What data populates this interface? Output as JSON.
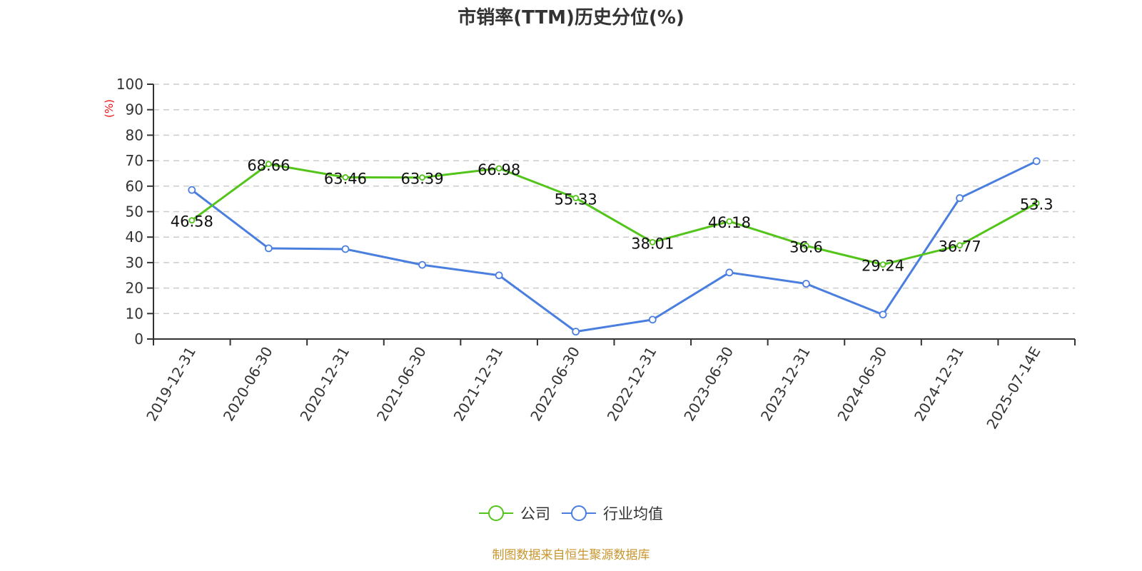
{
  "chart_data": {
    "type": "line",
    "title": "市销率(TTM)历史分位(%)",
    "xlabel": "",
    "ylabel": "(%)",
    "ylim": [
      0,
      100
    ],
    "yticks": [
      0,
      10,
      20,
      30,
      40,
      50,
      60,
      70,
      80,
      90,
      100
    ],
    "grid": true,
    "legend_position": "bottom",
    "categories": [
      "2019-12-31",
      "2020-06-30",
      "2020-12-31",
      "2021-06-30",
      "2021-12-31",
      "2022-06-30",
      "2022-12-31",
      "2023-06-30",
      "2023-12-31",
      "2024-06-30",
      "2024-12-31",
      "2025-07-14E"
    ],
    "series": [
      {
        "name": "公司",
        "color": "#52c41a",
        "labeled": true,
        "values": [
          46.58,
          68.66,
          63.46,
          63.39,
          66.98,
          55.33,
          38.01,
          46.18,
          36.6,
          29.24,
          36.77,
          53.3
        ]
      },
      {
        "name": "行业均值",
        "color": "#4a7fdf",
        "labeled": false,
        "values": [
          58.5,
          35.6,
          35.3,
          29.1,
          25.0,
          2.9,
          7.6,
          26.1,
          21.7,
          9.6,
          55.3,
          69.8
        ]
      }
    ]
  },
  "header": {
    "title": "市销率(TTM)历史分位(%)"
  },
  "legend": {
    "items": [
      {
        "label": "公司",
        "color": "#52c41a"
      },
      {
        "label": "行业均值",
        "color": "#4a7fdf"
      }
    ]
  },
  "footer": {
    "source": "制图数据来自恒生聚源数据库"
  }
}
